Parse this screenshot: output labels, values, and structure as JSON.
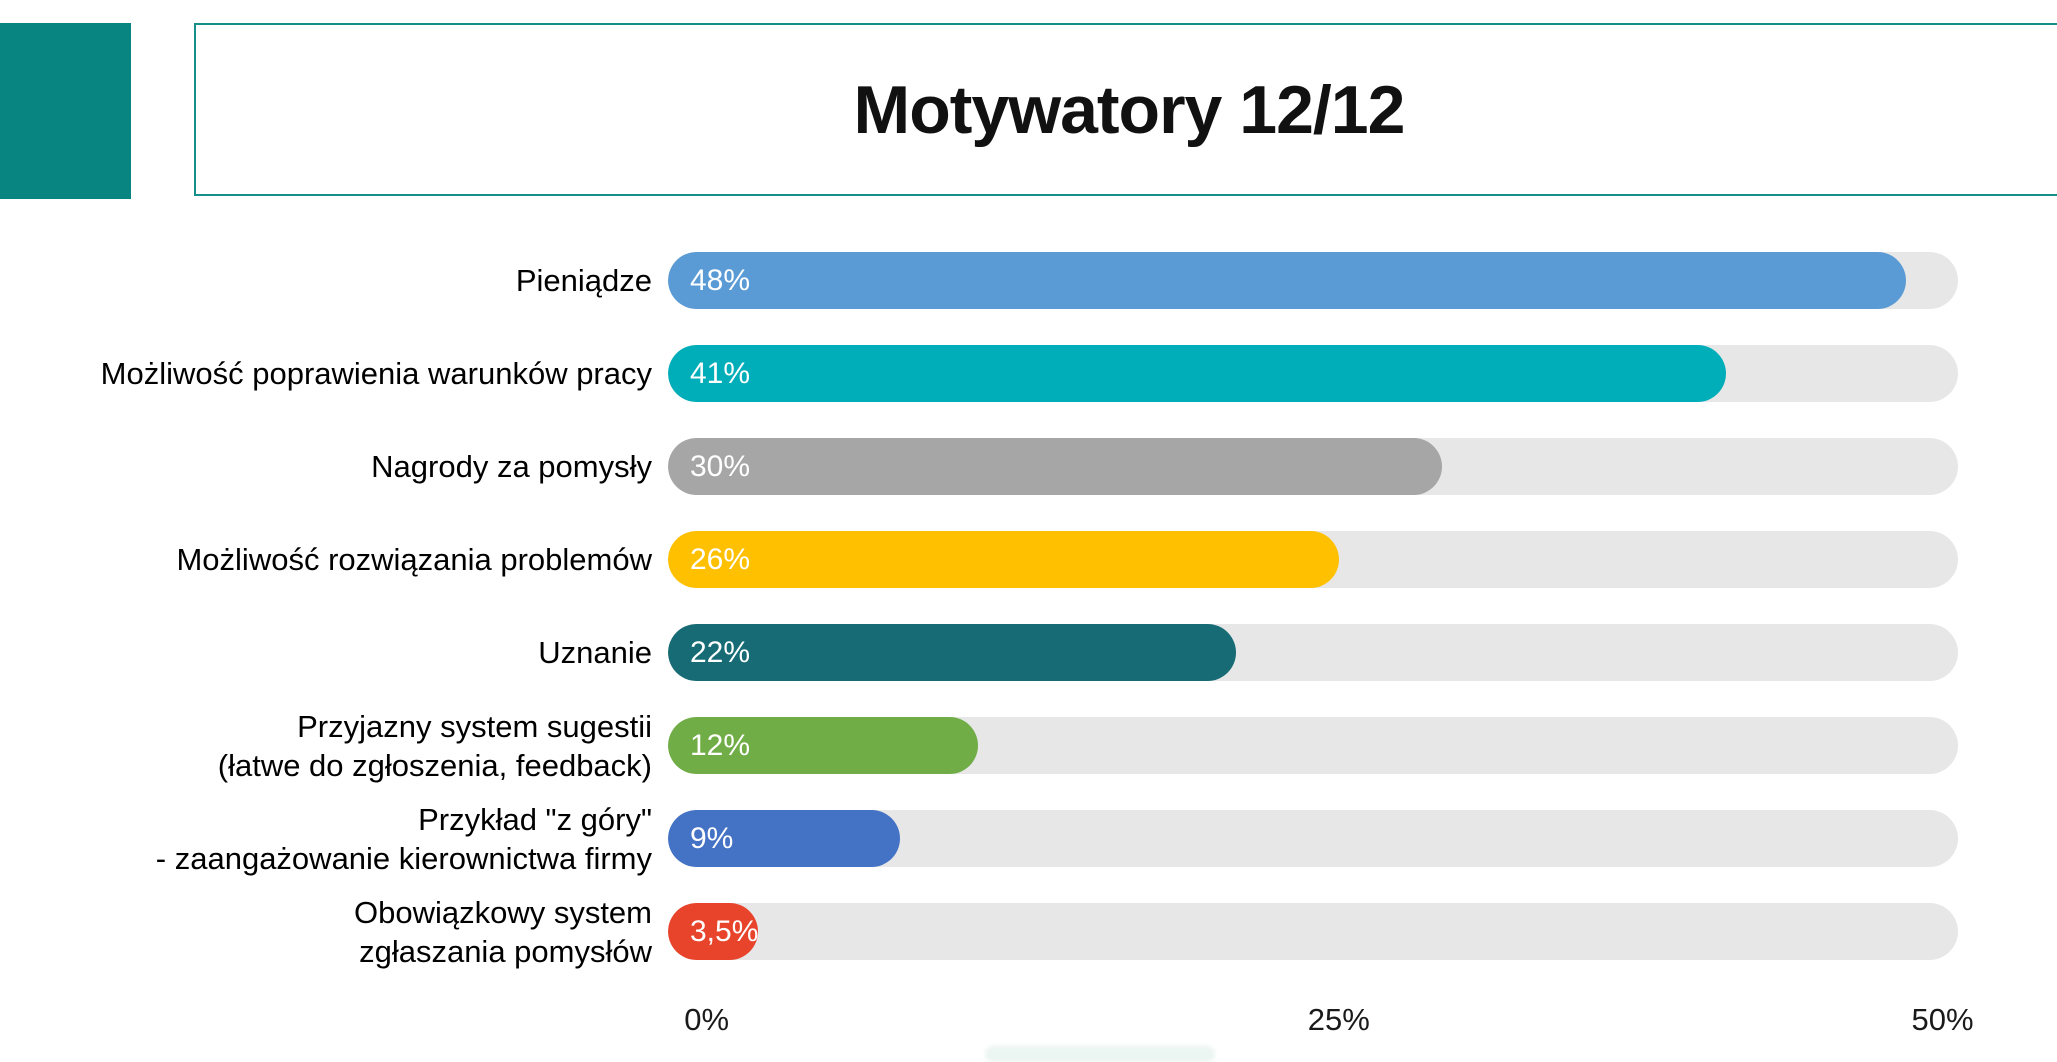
{
  "slide": {
    "title": "Motywatory 12/12"
  },
  "theme": {
    "accent_teal": "#088581",
    "title_border_teal": "#168f88",
    "track_gray": "#e7e7e7",
    "value_text": "#ffffff",
    "label_text": "#000000"
  },
  "chart_data": {
    "type": "bar",
    "orientation": "horizontal",
    "title": "Motywatory 12/12",
    "xlabel": "",
    "ylabel": "",
    "xlim": [
      0,
      50
    ],
    "x_ticks": [
      "0%",
      "25%",
      "50%"
    ],
    "grid": false,
    "legend": false,
    "categories": [
      "Pieniądze",
      "Możliwość poprawienia warunków pracy",
      "Nagrody za pomysły",
      "Możliwość rozwiązania problemów",
      "Uznanie",
      "Przyjazny system sugestii\n(łatwe do zgłoszenia, feedback)",
      "Przykład \"z góry\"\n- zaangażowanie kierownictwa firmy",
      "Obowiązkowy system\nzgłaszania pomysłów"
    ],
    "values": [
      48,
      41,
      30,
      26,
      22,
      12,
      9,
      3.5
    ],
    "rows": [
      {
        "label": "Pieniądze",
        "value": 48,
        "value_label": "48%",
        "color": "#5b9bd5"
      },
      {
        "label": "Możliwość poprawienia warunków pracy",
        "value": 41,
        "value_label": "41%",
        "color": "#00aeb9"
      },
      {
        "label": "Nagrody za pomysły",
        "value": 30,
        "value_label": "30%",
        "color": "#a6a6a6"
      },
      {
        "label": "Możliwość rozwiązania problemów",
        "value": 26,
        "value_label": "26%",
        "color": "#ffc000"
      },
      {
        "label": "Uznanie",
        "value": 22,
        "value_label": "22%",
        "color": "#166b74"
      },
      {
        "label": "Przyjazny system sugestii\n(łatwe do zgłoszenia, feedback)",
        "value": 12,
        "value_label": "12%",
        "color": "#70ad47"
      },
      {
        "label": "Przykład \"z góry\"\n- zaangażowanie kierownictwa firmy",
        "value": 9,
        "value_label": "9%",
        "color": "#4472c4"
      },
      {
        "label": "Obowiązkowy system\nzgłaszania pomysłów",
        "value": 3.5,
        "value_label": "3,5%",
        "color": "#e8432b"
      }
    ]
  }
}
